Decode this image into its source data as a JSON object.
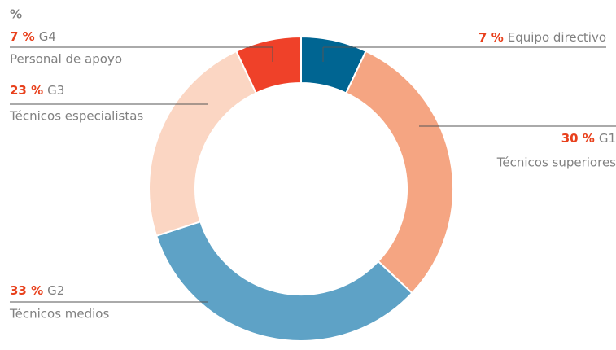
{
  "chart_data": {
    "type": "donut",
    "title": "%",
    "categories": [
      "Equipo directivo",
      "Técnicos superiores",
      "Técnicos medios",
      "Técnicos especialistas",
      "Personal de apoyo"
    ],
    "groups": [
      null,
      "G1",
      "G2",
      "G3",
      "G4"
    ],
    "values": [
      7,
      30,
      33,
      23,
      7
    ],
    "value_labels": [
      "7 %",
      "30 %",
      "33 %",
      "23 %",
      "7 %"
    ],
    "colors": [
      "#006592",
      "#f5a582",
      "#5ea2c6",
      "#fbd6c3",
      "#ef4129"
    ]
  }
}
